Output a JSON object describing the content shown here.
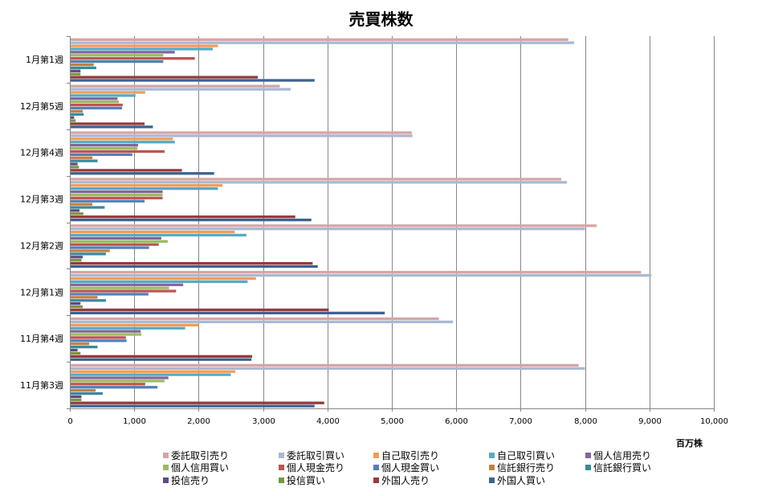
{
  "chart_data": {
    "type": "bar",
    "orientation": "horizontal",
    "title": "売買株数",
    "xlabel": "百万株",
    "ylabel": "",
    "xlim": [
      0,
      10000
    ],
    "xticks": [
      "0",
      "1,000",
      "2,000",
      "3,000",
      "4,000",
      "5,000",
      "6,000",
      "7,000",
      "8,000",
      "9,000",
      "10,000"
    ],
    "grid": true,
    "legend_position": "bottom",
    "categories": [
      "1月第1週",
      "12月第5週",
      "12月第4週",
      "12月第3週",
      "12月第2週",
      "12月第1週",
      "11月第4週",
      "11月第3週"
    ],
    "series": [
      {
        "name": "委託取引売り",
        "color": "#D6A5A4",
        "values": [
          7740,
          3260,
          5310,
          7630,
          8180,
          8870,
          5730,
          7900
        ]
      },
      {
        "name": "委託取引買い",
        "color": "#A9B9D4",
        "values": [
          7830,
          3430,
          5320,
          7720,
          8000,
          9030,
          5950,
          8000
        ]
      },
      {
        "name": "自己取引売り",
        "color": "#F29C55",
        "values": [
          2300,
          1170,
          1600,
          2370,
          2560,
          2890,
          2000,
          2570
        ]
      },
      {
        "name": "自己取引買い",
        "color": "#55ABC4",
        "values": [
          2220,
          1020,
          1630,
          2300,
          2740,
          2760,
          1790,
          2500
        ]
      },
      {
        "name": "個人信用売り",
        "color": "#80669F",
        "values": [
          1630,
          740,
          1060,
          1440,
          1420,
          1760,
          1100,
          1530
        ]
      },
      {
        "name": "個人信用買い",
        "color": "#9DBB5F",
        "values": [
          1450,
          760,
          1050,
          1440,
          1520,
          1540,
          1110,
          1470
        ]
      },
      {
        "name": "個人現金売り",
        "color": "#BE5452",
        "values": [
          1940,
          820,
          1470,
          1440,
          1380,
          1650,
          870,
          1170
        ]
      },
      {
        "name": "個人現金買い",
        "color": "#5380B8",
        "values": [
          1450,
          810,
          970,
          1160,
          1230,
          1220,
          880,
          1360
        ]
      },
      {
        "name": "信託銀行売り",
        "color": "#C57F42",
        "values": [
          370,
          200,
          350,
          350,
          620,
          430,
          300,
          400
        ]
      },
      {
        "name": "信託銀行買い",
        "color": "#3A8A9E",
        "values": [
          410,
          215,
          430,
          540,
          560,
          560,
          430,
          510
        ]
      },
      {
        "name": "投信売り",
        "color": "#5F4B80",
        "values": [
          165,
          66,
          120,
          150,
          200,
          165,
          120,
          180
        ]
      },
      {
        "name": "投信買い",
        "color": "#7A9642",
        "values": [
          165,
          90,
          140,
          210,
          180,
          200,
          165,
          180
        ]
      },
      {
        "name": "外国人売り",
        "color": "#963B3A",
        "values": [
          2920,
          1160,
          1740,
          3500,
          3770,
          4020,
          2830,
          3950
        ]
      },
      {
        "name": "外国人買い",
        "color": "#3D6290",
        "values": [
          3800,
          1290,
          2240,
          3750,
          3850,
          4890,
          2820,
          3800
        ]
      }
    ]
  }
}
